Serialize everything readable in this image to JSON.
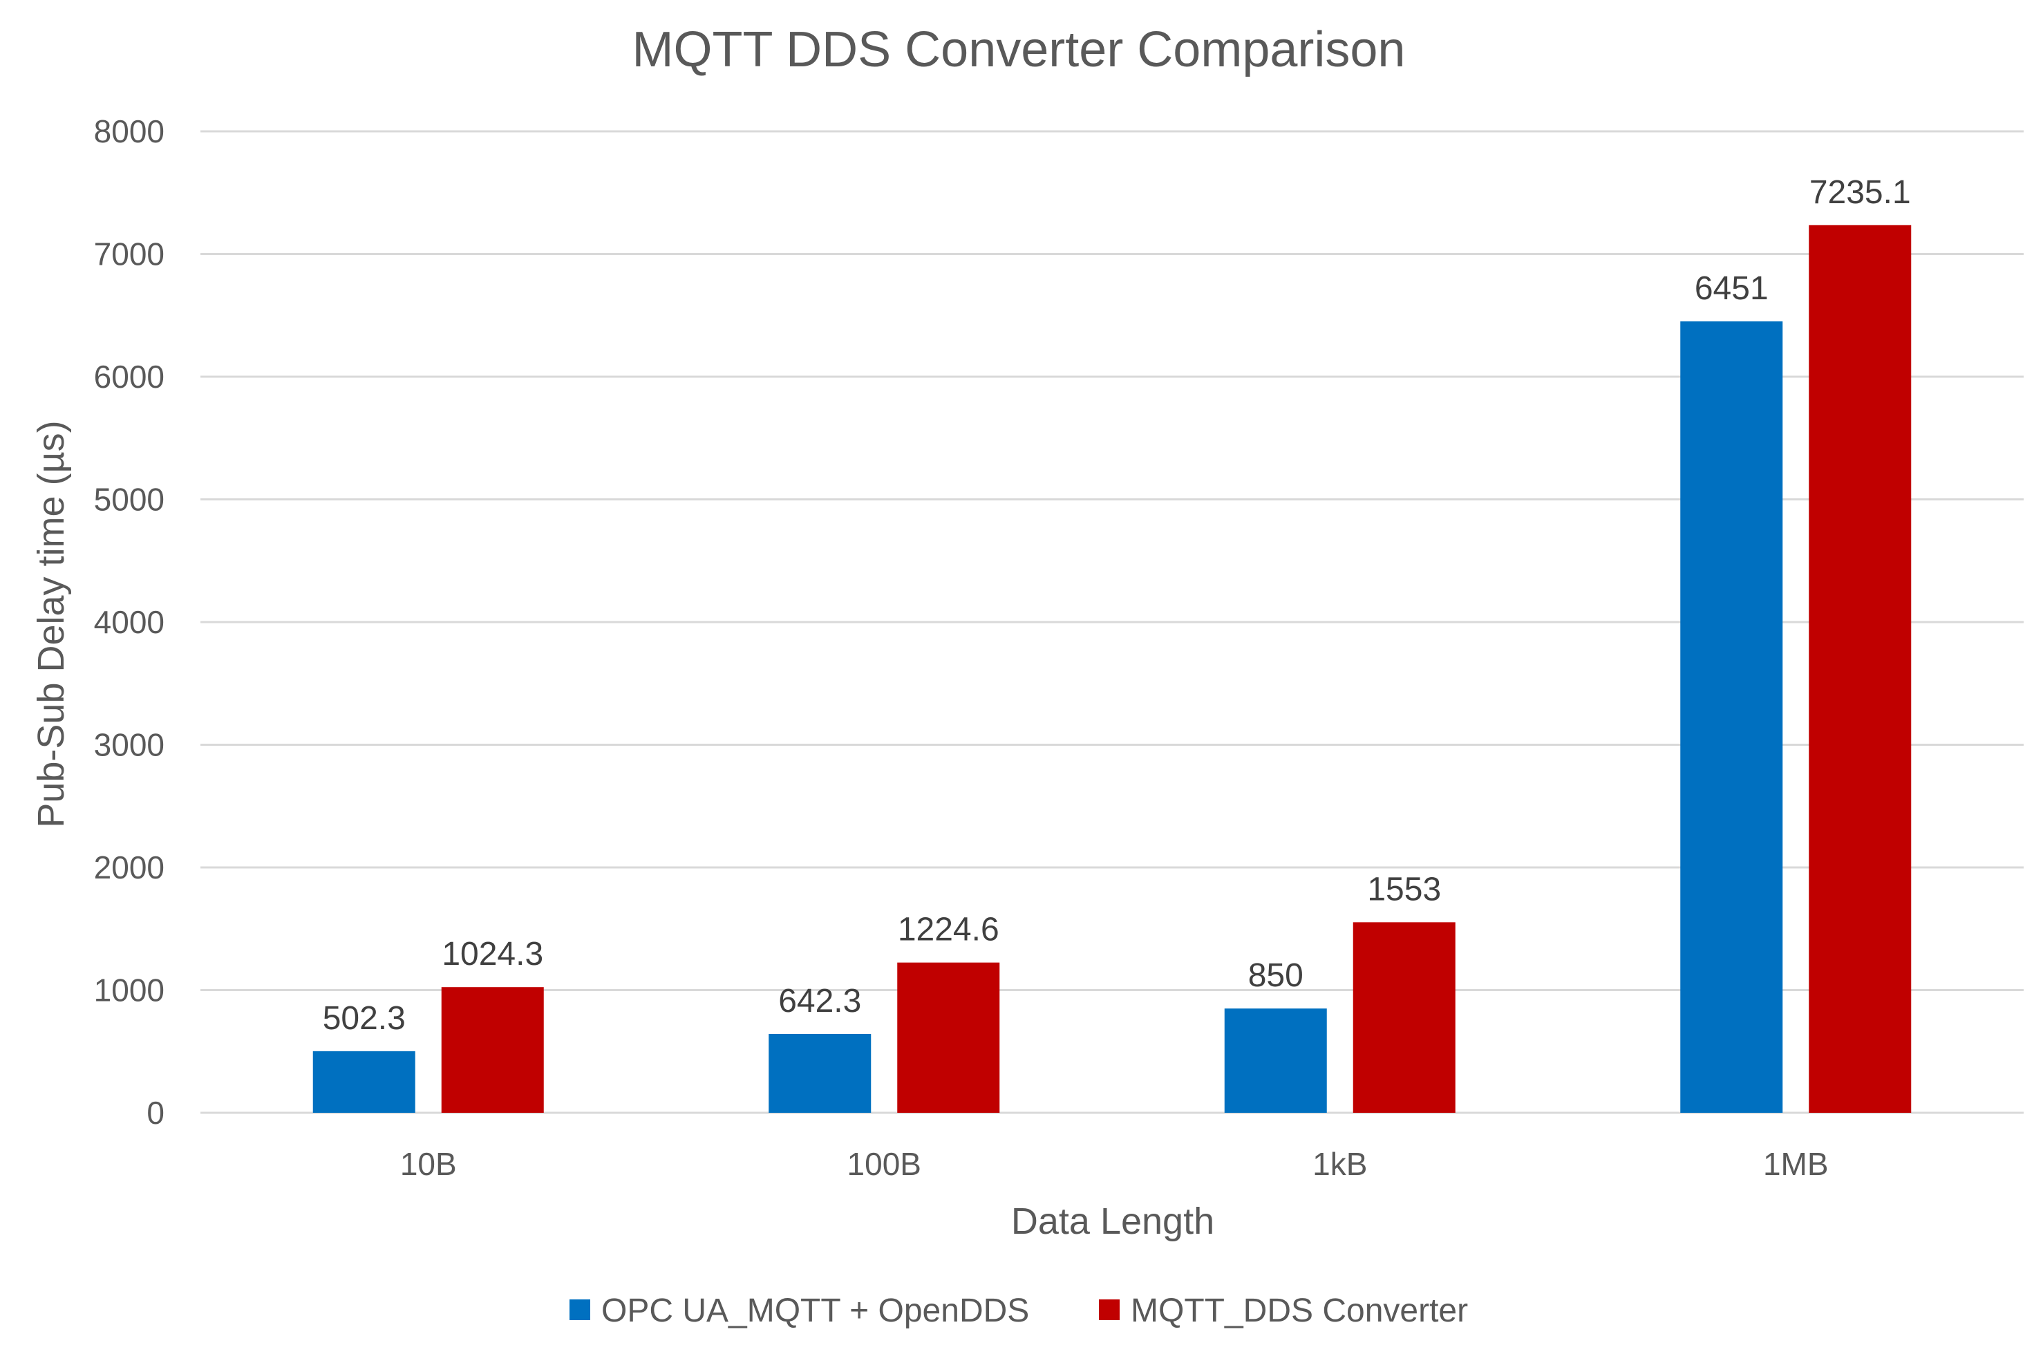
{
  "chart_data": {
    "type": "bar",
    "title": "MQTT DDS Converter Comparison",
    "xlabel": "Data Length",
    "ylabel": "Pub-Sub Delay time (µs)",
    "categories": [
      "10B",
      "100B",
      "1kB",
      "1MB"
    ],
    "series": [
      {
        "name": "OPC UA_MQTT + OpenDDS",
        "color": "#0070c0",
        "values": [
          502.3,
          642.3,
          850,
          6451
        ],
        "labels": [
          "502.3",
          "642.3",
          "850",
          "6451"
        ]
      },
      {
        "name": "MQTT_DDS Converter",
        "color": "#c00000",
        "values": [
          1024.3,
          1224.6,
          1553,
          7235.1
        ],
        "labels": [
          "1024.3",
          "1224.6",
          "1553",
          "7235.1"
        ]
      }
    ],
    "ylim": [
      0,
      8000
    ],
    "yticks": [
      0,
      1000,
      2000,
      3000,
      4000,
      5000,
      6000,
      7000,
      8000
    ],
    "grid": true,
    "legend_position": "bottom"
  }
}
